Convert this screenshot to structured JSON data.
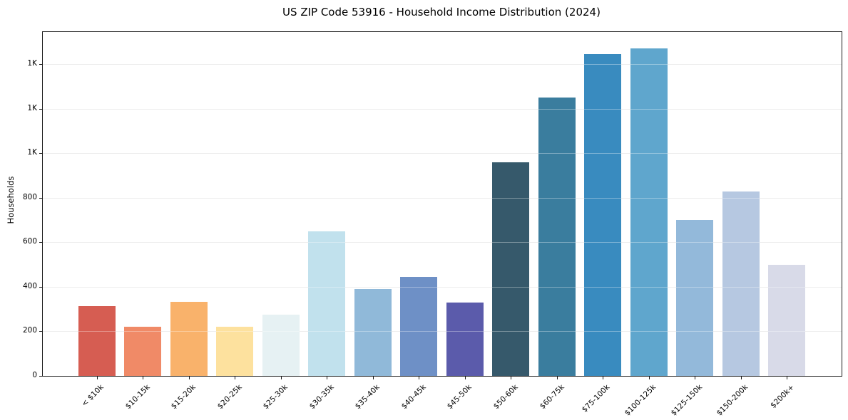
{
  "chart_data": {
    "type": "bar",
    "title": "US ZIP Code 53916 - Household Income Distribution (2024)",
    "xlabel": "",
    "ylabel": "Households",
    "categories": [
      "< $10k",
      "$10-15k",
      "$15-20k",
      "$20-25k",
      "$25-30k",
      "$30-35k",
      "$35-40k",
      "$40-45k",
      "$45-50k",
      "$50-60k",
      "$60-75k",
      "$75-100k",
      "$100-125k",
      "$125-150k",
      "$150-200k",
      "$200k+"
    ],
    "values": [
      315,
      220,
      333,
      222,
      275,
      650,
      390,
      445,
      330,
      960,
      1250,
      1445,
      1470,
      700,
      830,
      498
    ],
    "bar_colors": [
      "#d65d52",
      "#f08a67",
      "#f9b26b",
      "#fde19e",
      "#e6f1f3",
      "#c1e1ed",
      "#90b9d9",
      "#6e90c6",
      "#5b5bab",
      "#36596b",
      "#3a7d9e",
      "#398bbf",
      "#5fa6cd",
      "#93b9da",
      "#b6c8e1",
      "#d8dae8"
    ],
    "yticks": [
      {
        "value": 0,
        "label": "0"
      },
      {
        "value": 200,
        "label": "200"
      },
      {
        "value": 400,
        "label": "400"
      },
      {
        "value": 600,
        "label": "600"
      },
      {
        "value": 800,
        "label": "800"
      },
      {
        "value": 1000,
        "label": "1K"
      },
      {
        "value": 1200,
        "label": "1K"
      },
      {
        "value": 1400,
        "label": "1K"
      }
    ],
    "ylim": [
      0,
      1545
    ],
    "grid": "horizontal",
    "legend": "none",
    "background": "#ffffff",
    "axis_color": "#1a1a1a",
    "gridline_color": "#e4e4e4"
  }
}
